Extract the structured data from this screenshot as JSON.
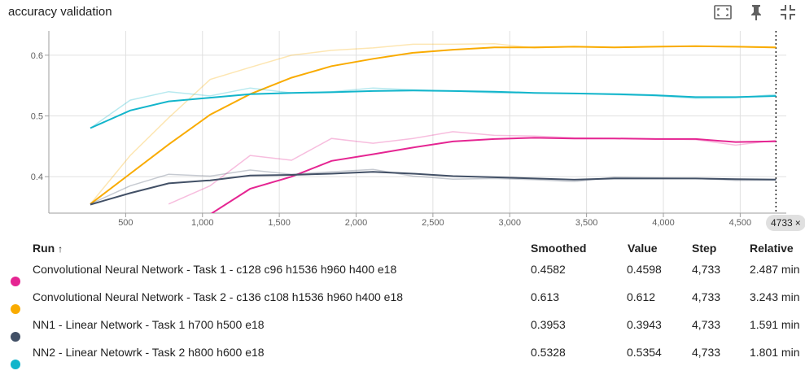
{
  "title": "accuracy validation",
  "toolbar": {
    "icons": [
      "fit-domain-icon",
      "pin-icon",
      "collapse-icon"
    ]
  },
  "step_badge": {
    "label": "4733",
    "close": "×"
  },
  "table": {
    "headers": {
      "run": "Run",
      "sort_arrow": "↑",
      "smoothed": "Smoothed",
      "value": "Value",
      "step": "Step",
      "relative": "Relative"
    },
    "rows": [
      {
        "run": "Convolutional Neural Network - Task 1 - c128 c96 h1536 h960 h400 e18",
        "smoothed": "0.4582",
        "value": "0.4598",
        "step": "4,733",
        "relative": "2.487 min",
        "color": "#e52592"
      },
      {
        "run": "Convolutional Neural Network - Task 2 - c136 c108 h1536 h960 h400 e18",
        "smoothed": "0.613",
        "value": "0.612",
        "step": "4,733",
        "relative": "3.243 min",
        "color": "#f9ab00"
      },
      {
        "run": "NN1 - Linear Network - Task 1 h700 h500 e18",
        "smoothed": "0.3953",
        "value": "0.3943",
        "step": "4,733",
        "relative": "1.591 min",
        "color": "#425066"
      },
      {
        "run": "NN2 - Linear Netowrk - Task 2 h800 h600 e18",
        "smoothed": "0.5328",
        "value": "0.5354",
        "step": "4,733",
        "relative": "1.801 min",
        "color": "#12b5cb"
      }
    ]
  },
  "chart_data": {
    "type": "line",
    "title": "accuracy validation",
    "xlim": [
      0,
      4800
    ],
    "ylim": [
      0.34,
      0.64
    ],
    "x_ticks": [
      500,
      1000,
      1500,
      2000,
      2500,
      3000,
      3500,
      4000,
      4500
    ],
    "x_tick_labels": [
      "500",
      "1,000",
      "1,500",
      "2,000",
      "2,500",
      "3,000",
      "3,500",
      "4,000",
      "4,500"
    ],
    "y_ticks": [
      0.4,
      0.5,
      0.6
    ],
    "y_tick_labels": [
      "0.4",
      "0.5",
      "0.6"
    ],
    "grid": true,
    "current_step": 4733,
    "series": [
      {
        "name": "Convolutional Neural Network - Task 1 - c128 c96 h1536 h960 h400 e18",
        "color": "#e52592",
        "raw": {
          "x": [
            780,
            1050,
            1310,
            1580,
            1840,
            2110,
            2370,
            2630,
            2900,
            3160,
            3420,
            3680,
            3950,
            4210,
            4470,
            4733
          ],
          "y": [
            0.355,
            0.385,
            0.435,
            0.427,
            0.463,
            0.455,
            0.463,
            0.474,
            0.468,
            0.467,
            0.464,
            0.463,
            0.462,
            0.461,
            0.452,
            0.4598
          ]
        },
        "smoothed": {
          "x": [
            1050,
            1310,
            1580,
            1840,
            2110,
            2370,
            2630,
            2900,
            3160,
            3420,
            3680,
            3950,
            4210,
            4470,
            4733
          ],
          "y": [
            0.338,
            0.38,
            0.4,
            0.426,
            0.437,
            0.448,
            0.458,
            0.462,
            0.464,
            0.463,
            0.463,
            0.462,
            0.462,
            0.457,
            0.4582
          ]
        }
      },
      {
        "name": "Convolutional Neural Network - Task 2 - c136 c108 h1536 h960 h400 e18",
        "color": "#f9ab00",
        "raw": {
          "x": [
            270,
            530,
            780,
            1050,
            1310,
            1580,
            1840,
            2110,
            2370,
            2630,
            2900,
            3160,
            3420,
            3680,
            3950,
            4210,
            4470,
            4733
          ],
          "y": [
            0.355,
            0.435,
            0.497,
            0.56,
            0.58,
            0.6,
            0.608,
            0.612,
            0.618,
            0.618,
            0.619,
            0.612,
            0.614,
            0.613,
            0.614,
            0.615,
            0.614,
            0.612
          ]
        },
        "smoothed": {
          "x": [
            270,
            530,
            780,
            1050,
            1310,
            1580,
            1840,
            2110,
            2370,
            2630,
            2900,
            3160,
            3420,
            3680,
            3950,
            4210,
            4470,
            4733
          ],
          "y": [
            0.355,
            0.405,
            0.453,
            0.502,
            0.536,
            0.563,
            0.582,
            0.594,
            0.604,
            0.609,
            0.613,
            0.613,
            0.614,
            0.613,
            0.614,
            0.615,
            0.614,
            0.613
          ]
        }
      },
      {
        "name": "NN1 - Linear Network - Task 1 h700 h500 e18",
        "color": "#425066",
        "raw": {
          "x": [
            270,
            530,
            780,
            1050,
            1310,
            1580,
            1840,
            2110,
            2370,
            2630,
            2900,
            3160,
            3420,
            3680,
            3950,
            4210,
            4470,
            4733
          ],
          "y": [
            0.355,
            0.385,
            0.404,
            0.401,
            0.411,
            0.404,
            0.408,
            0.412,
            0.401,
            0.396,
            0.397,
            0.395,
            0.392,
            0.399,
            0.398,
            0.397,
            0.394,
            0.3943
          ]
        },
        "smoothed": {
          "x": [
            270,
            530,
            780,
            1050,
            1310,
            1580,
            1840,
            2110,
            2370,
            2630,
            2900,
            3160,
            3420,
            3680,
            3950,
            4210,
            4470,
            4733
          ],
          "y": [
            0.354,
            0.373,
            0.389,
            0.394,
            0.402,
            0.403,
            0.405,
            0.408,
            0.405,
            0.401,
            0.399,
            0.397,
            0.395,
            0.397,
            0.397,
            0.397,
            0.396,
            0.3953
          ]
        }
      },
      {
        "name": "NN2 - Linear Netowrk - Task 2 h800 h600 e18",
        "color": "#12b5cb",
        "raw": {
          "x": [
            270,
            530,
            780,
            1050,
            1310,
            1580,
            1840,
            2110,
            2370,
            2630,
            2900,
            3160,
            3420,
            3680,
            3950,
            4210,
            4470,
            4733
          ],
          "y": [
            0.48,
            0.526,
            0.54,
            0.533,
            0.546,
            0.538,
            0.54,
            0.546,
            0.543,
            0.541,
            0.538,
            0.538,
            0.537,
            0.535,
            0.533,
            0.529,
            0.53,
            0.5354
          ]
        },
        "smoothed": {
          "x": [
            270,
            530,
            780,
            1050,
            1310,
            1580,
            1840,
            2110,
            2370,
            2630,
            2900,
            3160,
            3420,
            3680,
            3950,
            4210,
            4470,
            4733
          ],
          "y": [
            0.48,
            0.509,
            0.524,
            0.53,
            0.536,
            0.538,
            0.539,
            0.541,
            0.542,
            0.541,
            0.54,
            0.538,
            0.537,
            0.536,
            0.534,
            0.531,
            0.531,
            0.5328
          ]
        }
      }
    ]
  }
}
